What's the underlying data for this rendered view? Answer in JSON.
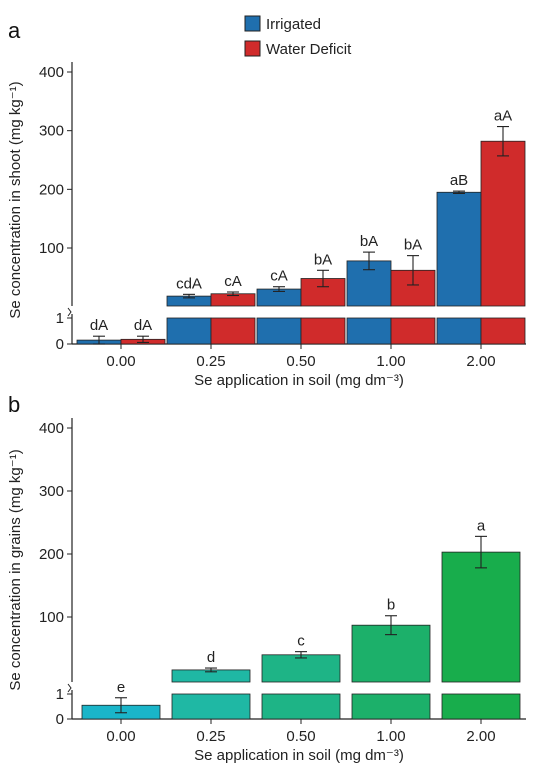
{
  "chart_data": [
    {
      "panel": "a",
      "type": "bar",
      "xlabel": "Se application in soil (mg dm⁻³)",
      "ylabel": "Se concentration in shoot (mg kg⁻¹)",
      "categories": [
        "0.00",
        "0.25",
        "0.50",
        "1.00",
        "2.00"
      ],
      "yticks_upper": [
        100,
        200,
        300,
        400
      ],
      "yticks_lower": [
        0,
        1
      ],
      "axis_break": true,
      "legend_position": "top-center",
      "series": [
        {
          "name": "Irrigated",
          "color": "#1f6fae",
          "values": [
            0.15,
            18,
            30,
            78,
            195
          ],
          "errors": [
            0.15,
            3,
            4,
            15,
            2
          ],
          "labels": [
            "dA",
            "cdA",
            "cA",
            "bA",
            "aB"
          ]
        },
        {
          "name": "Water Deficit",
          "color": "#d02b2b",
          "values": [
            0.18,
            22,
            48,
            62,
            282
          ],
          "errors": [
            0.12,
            3,
            14,
            25,
            25
          ],
          "labels": [
            "dA",
            "cA",
            "bA",
            "bA",
            "aA"
          ]
        }
      ]
    },
    {
      "panel": "b",
      "type": "bar",
      "xlabel": "Se application in soil (mg dm⁻³)",
      "ylabel": "Se concentration in grains (mg kg⁻¹)",
      "categories": [
        "0.00",
        "0.25",
        "0.50",
        "1.00",
        "2.00"
      ],
      "yticks_upper": [
        100,
        200,
        300,
        400
      ],
      "yticks_lower": [
        0,
        1
      ],
      "axis_break": true,
      "series": [
        {
          "name": "",
          "colors": [
            "#1ab5c9",
            "#1fb8a4",
            "#1eb486",
            "#1cb06a",
            "#18ad4c"
          ],
          "values": [
            0.55,
            16,
            40,
            87,
            203
          ],
          "errors": [
            0.3,
            3,
            5,
            15,
            25
          ],
          "labels": [
            "e",
            "d",
            "c",
            "b",
            "a"
          ]
        }
      ]
    }
  ],
  "legend": {
    "items": [
      {
        "label": "Irrigated",
        "color": "#1f6fae"
      },
      {
        "label": "Water Deficit",
        "color": "#d02b2b"
      }
    ]
  },
  "panels": {
    "a_letter": "a",
    "b_letter": "b"
  }
}
